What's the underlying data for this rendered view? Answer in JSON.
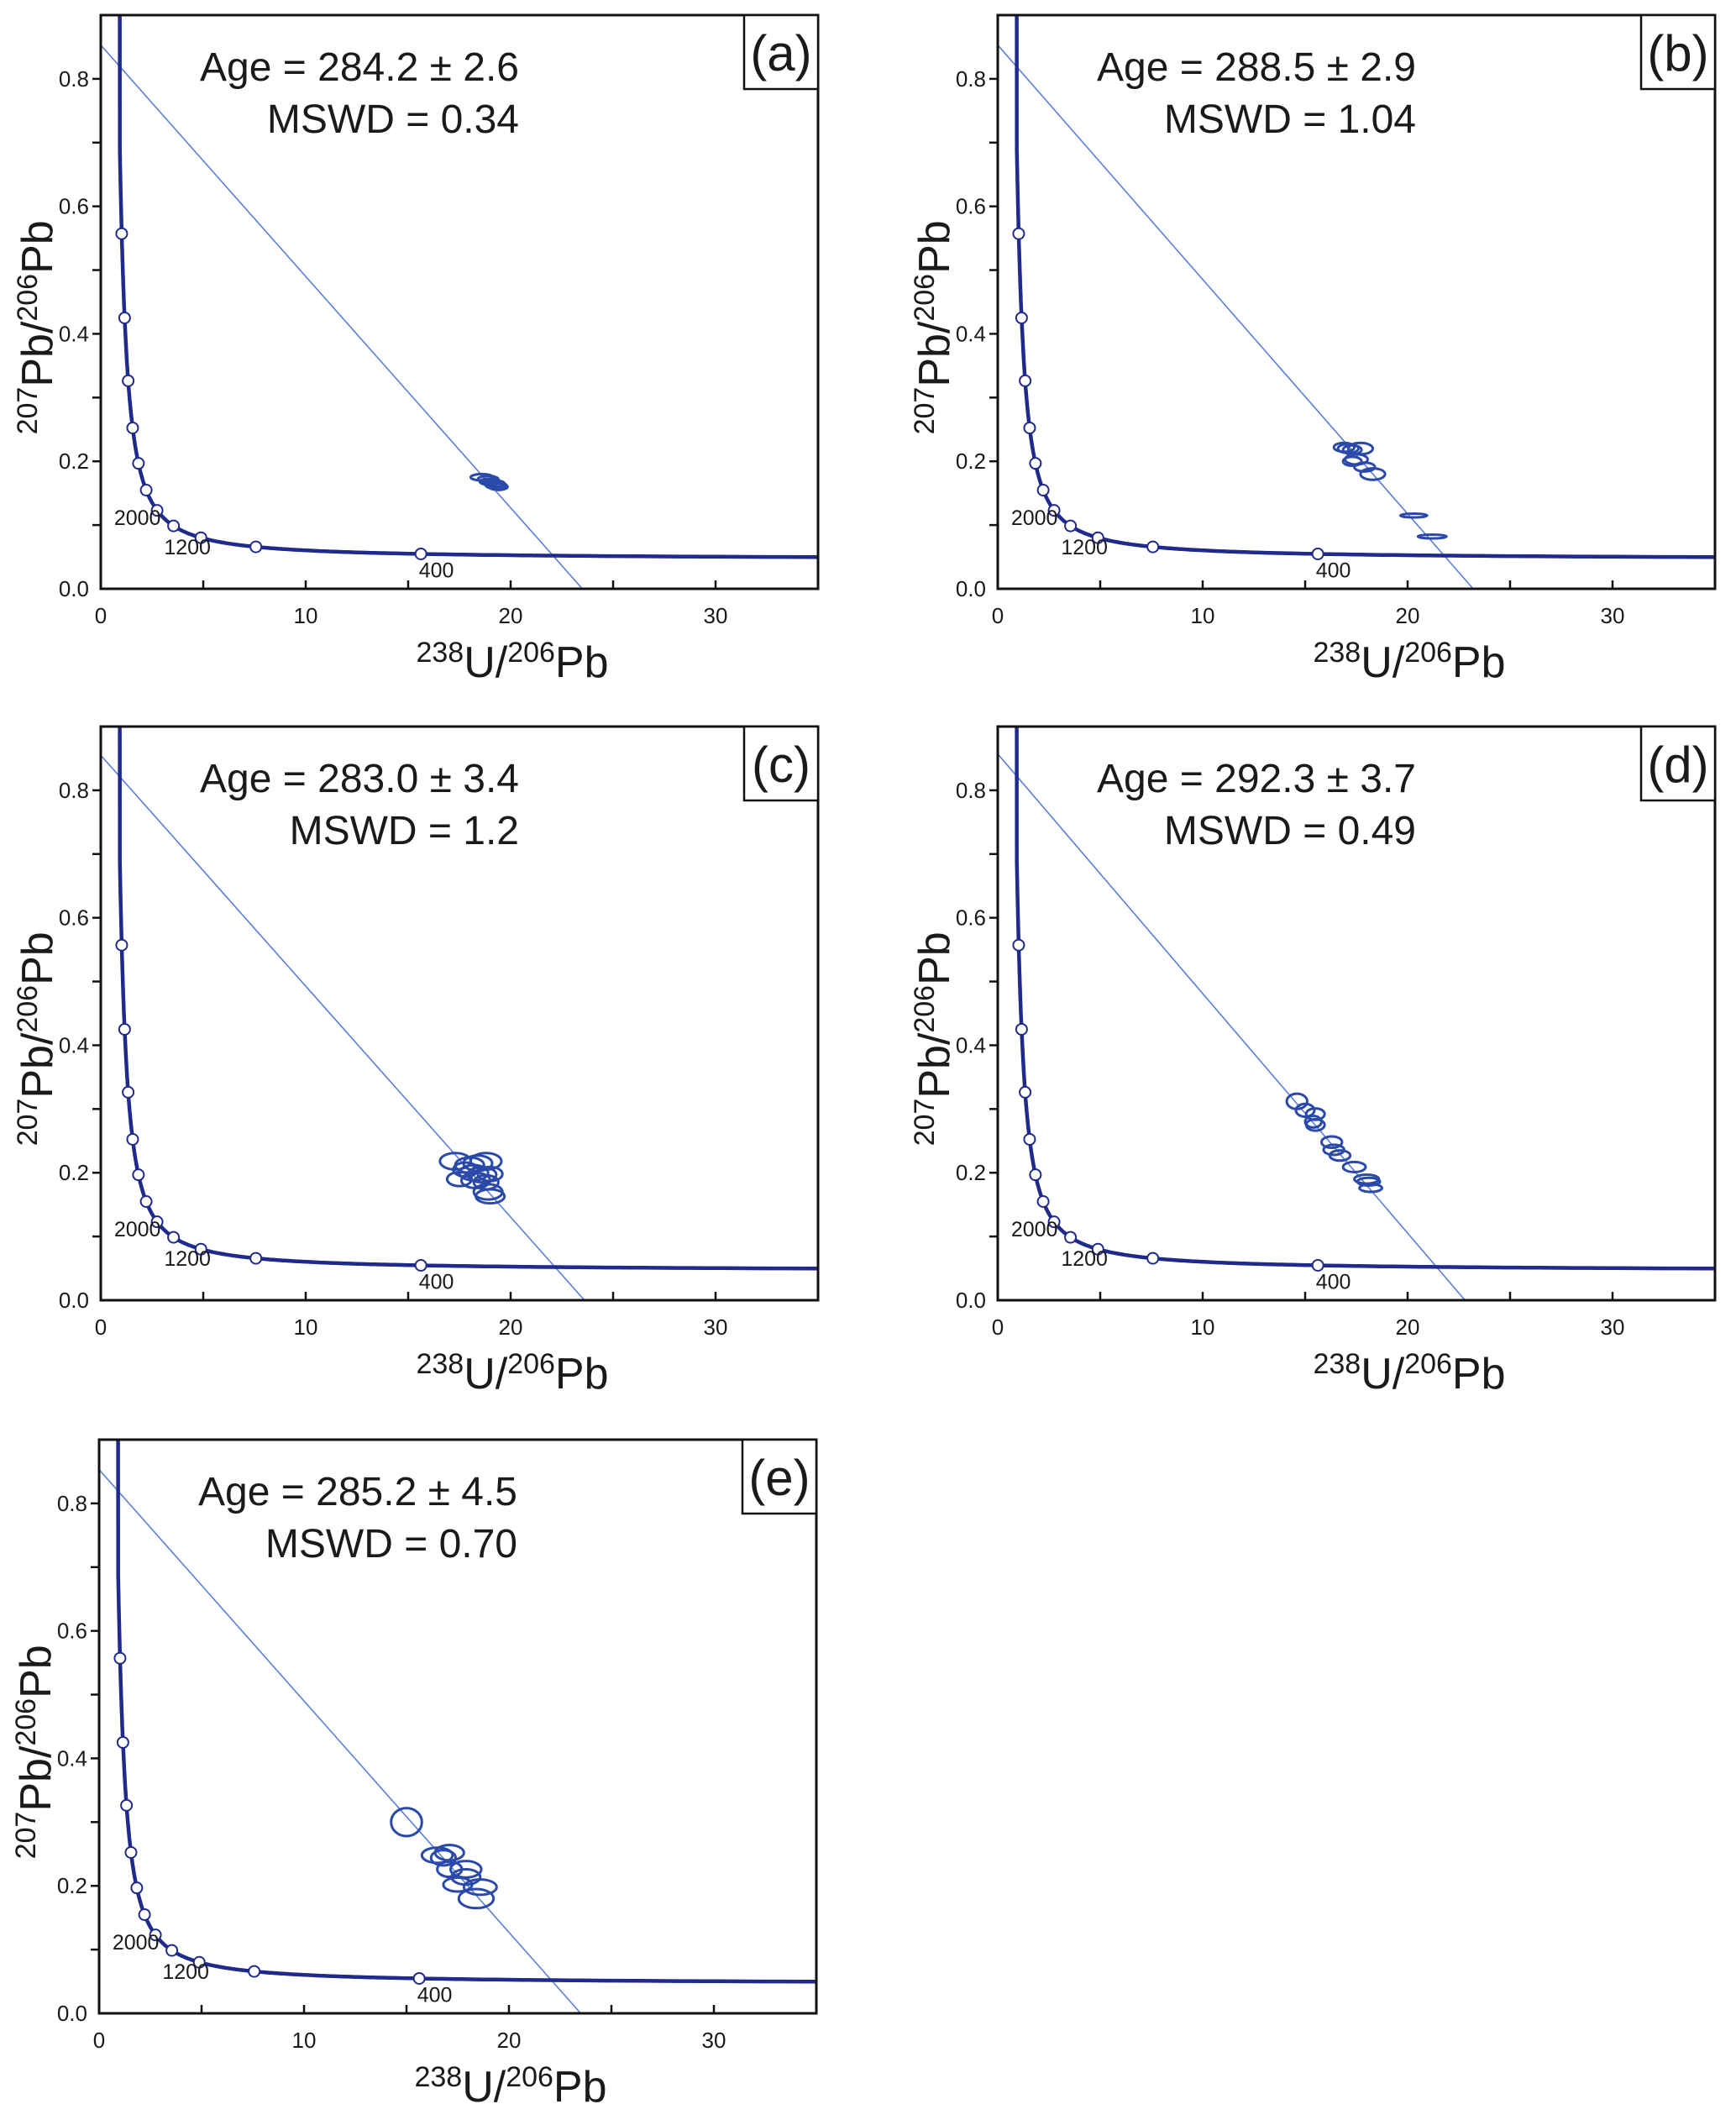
{
  "chart_data": [
    {
      "type": "scatter",
      "panel": "(a)",
      "age_text": "Age = 284.2 ± 2.6",
      "mswd_text": "MSWD = 0.34",
      "xlabel": {
        "sup1": "238",
        "main1": "U/",
        "sup2": "206",
        "main2": "Pb"
      },
      "ylabel": {
        "sup1": "207",
        "main1": "Pb/",
        "sup2": "206",
        "main2": "Pb"
      },
      "xlim": [
        0,
        35
      ],
      "ylim": [
        0,
        0.9
      ],
      "x_ticks": [
        "0",
        "10",
        "20",
        "30"
      ],
      "y_ticks": [
        "0.0",
        "0.2",
        "0.4",
        "0.6",
        "0.8"
      ],
      "concordia_labels": [
        "2000",
        "1200",
        "400"
      ],
      "discordia": {
        "y_intercept": 0.853,
        "x_intercept": 23.5
      },
      "ellipses": [
        {
          "x": 18.6,
          "y": 0.175,
          "rx": 0.55,
          "ry": 0.005
        },
        {
          "x": 18.9,
          "y": 0.172,
          "rx": 0.5,
          "ry": 0.005
        },
        {
          "x": 19.0,
          "y": 0.168,
          "rx": 0.5,
          "ry": 0.005
        },
        {
          "x": 19.2,
          "y": 0.165,
          "rx": 0.5,
          "ry": 0.005
        },
        {
          "x": 19.3,
          "y": 0.162,
          "rx": 0.5,
          "ry": 0.005
        },
        {
          "x": 19.4,
          "y": 0.16,
          "rx": 0.45,
          "ry": 0.005
        }
      ]
    },
    {
      "type": "scatter",
      "panel": "(b)",
      "age_text": "Age = 288.5 ± 2.9",
      "mswd_text": "MSWD = 1.04",
      "xlabel": {
        "sup1": "238",
        "main1": "U/",
        "sup2": "206",
        "main2": "Pb"
      },
      "ylabel": {
        "sup1": "207",
        "main1": "Pb/",
        "sup2": "206",
        "main2": "Pb"
      },
      "xlim": [
        0,
        35
      ],
      "ylim": [
        0,
        0.9
      ],
      "x_ticks": [
        "0",
        "10",
        "20",
        "30"
      ],
      "y_ticks": [
        "0.0",
        "0.2",
        "0.4",
        "0.6",
        "0.8"
      ],
      "concordia_labels": [
        "2000",
        "1200",
        "400"
      ],
      "discordia": {
        "y_intercept": 0.853,
        "x_intercept": 23.2
      },
      "ellipses": [
        {
          "x": 16.9,
          "y": 0.222,
          "rx": 0.5,
          "ry": 0.007
        },
        {
          "x": 17.1,
          "y": 0.22,
          "rx": 0.5,
          "ry": 0.007
        },
        {
          "x": 17.3,
          "y": 0.218,
          "rx": 0.45,
          "ry": 0.007
        },
        {
          "x": 17.7,
          "y": 0.22,
          "rx": 0.6,
          "ry": 0.009
        },
        {
          "x": 17.3,
          "y": 0.2,
          "rx": 0.45,
          "ry": 0.007
        },
        {
          "x": 17.5,
          "y": 0.203,
          "rx": 0.55,
          "ry": 0.008
        },
        {
          "x": 17.9,
          "y": 0.191,
          "rx": 0.5,
          "ry": 0.007
        },
        {
          "x": 18.3,
          "y": 0.18,
          "rx": 0.6,
          "ry": 0.009
        },
        {
          "x": 20.3,
          "y": 0.115,
          "rx": 0.65,
          "ry": 0.003
        },
        {
          "x": 21.2,
          "y": 0.082,
          "rx": 0.7,
          "ry": 0.003
        }
      ]
    },
    {
      "type": "scatter",
      "panel": "(c)",
      "age_text": "Age = 283.0 ± 3.4",
      "mswd_text": "MSWD = 1.2",
      "xlabel": {
        "sup1": "238",
        "main1": "U/",
        "sup2": "206",
        "main2": "Pb"
      },
      "ylabel": {
        "sup1": "207",
        "main1": "Pb/",
        "sup2": "206",
        "main2": "Pb"
      },
      "xlim": [
        0,
        35
      ],
      "ylim": [
        0,
        0.9
      ],
      "x_ticks": [
        "0",
        "10",
        "20",
        "30"
      ],
      "y_ticks": [
        "0.0",
        "0.2",
        "0.4",
        "0.6",
        "0.8"
      ],
      "concordia_labels": [
        "2000",
        "1200",
        "400"
      ],
      "discordia": {
        "y_intercept": 0.855,
        "x_intercept": 23.6
      },
      "ellipses": [
        {
          "x": 17.3,
          "y": 0.218,
          "rx": 0.75,
          "ry": 0.013
        },
        {
          "x": 18.0,
          "y": 0.212,
          "rx": 0.7,
          "ry": 0.012
        },
        {
          "x": 18.4,
          "y": 0.215,
          "rx": 0.7,
          "ry": 0.012
        },
        {
          "x": 18.8,
          "y": 0.218,
          "rx": 0.75,
          "ry": 0.013
        },
        {
          "x": 17.8,
          "y": 0.205,
          "rx": 0.6,
          "ry": 0.011
        },
        {
          "x": 18.2,
          "y": 0.2,
          "rx": 0.7,
          "ry": 0.012
        },
        {
          "x": 18.6,
          "y": 0.197,
          "rx": 0.7,
          "ry": 0.012
        },
        {
          "x": 19.0,
          "y": 0.198,
          "rx": 0.6,
          "ry": 0.011
        },
        {
          "x": 17.5,
          "y": 0.19,
          "rx": 0.6,
          "ry": 0.011
        },
        {
          "x": 18.3,
          "y": 0.188,
          "rx": 0.7,
          "ry": 0.012
        },
        {
          "x": 18.8,
          "y": 0.185,
          "rx": 0.6,
          "ry": 0.011
        },
        {
          "x": 18.9,
          "y": 0.17,
          "rx": 0.7,
          "ry": 0.012
        },
        {
          "x": 19.0,
          "y": 0.163,
          "rx": 0.7,
          "ry": 0.011
        }
      ]
    },
    {
      "type": "scatter",
      "panel": "(d)",
      "age_text": "Age = 292.3 ± 3.7",
      "mswd_text": "MSWD = 0.49",
      "xlabel": {
        "sup1": "238",
        "main1": "U/",
        "sup2": "206",
        "main2": "Pb"
      },
      "ylabel": {
        "sup1": "207",
        "main1": "Pb/",
        "sup2": "206",
        "main2": "Pb"
      },
      "xlim": [
        0,
        35
      ],
      "ylim": [
        0,
        0.9
      ],
      "x_ticks": [
        "0",
        "10",
        "20",
        "30"
      ],
      "y_ticks": [
        "0.0",
        "0.2",
        "0.4",
        "0.6",
        "0.8"
      ],
      "concordia_labels": [
        "2000",
        "1200",
        "400"
      ],
      "discordia": {
        "y_intercept": 0.857,
        "x_intercept": 22.8
      },
      "ellipses": [
        {
          "x": 14.6,
          "y": 0.312,
          "rx": 0.5,
          "ry": 0.012
        },
        {
          "x": 15.0,
          "y": 0.298,
          "rx": 0.45,
          "ry": 0.01
        },
        {
          "x": 15.5,
          "y": 0.292,
          "rx": 0.45,
          "ry": 0.009
        },
        {
          "x": 15.4,
          "y": 0.28,
          "rx": 0.4,
          "ry": 0.009
        },
        {
          "x": 15.5,
          "y": 0.275,
          "rx": 0.45,
          "ry": 0.009
        },
        {
          "x": 16.3,
          "y": 0.248,
          "rx": 0.5,
          "ry": 0.009
        },
        {
          "x": 16.4,
          "y": 0.236,
          "rx": 0.5,
          "ry": 0.008
        },
        {
          "x": 16.7,
          "y": 0.227,
          "rx": 0.5,
          "ry": 0.008
        },
        {
          "x": 17.4,
          "y": 0.209,
          "rx": 0.55,
          "ry": 0.008
        },
        {
          "x": 18.0,
          "y": 0.19,
          "rx": 0.6,
          "ry": 0.007
        },
        {
          "x": 18.1,
          "y": 0.186,
          "rx": 0.55,
          "ry": 0.006
        },
        {
          "x": 18.2,
          "y": 0.176,
          "rx": 0.55,
          "ry": 0.006
        }
      ]
    },
    {
      "type": "scatter",
      "panel": "(e)",
      "age_text": "Age = 285.2 ± 4.5",
      "mswd_text": "MSWD = 0.70",
      "xlabel": {
        "sup1": "238",
        "main1": "U/",
        "sup2": "206",
        "main2": "Pb"
      },
      "ylabel": {
        "sup1": "207",
        "main1": "Pb/",
        "sup2": "206",
        "main2": "Pb"
      },
      "xlim": [
        0,
        35
      ],
      "ylim": [
        0,
        0.9
      ],
      "x_ticks": [
        "0",
        "10",
        "20",
        "30"
      ],
      "y_ticks": [
        "0.0",
        "0.2",
        "0.4",
        "0.6",
        "0.8"
      ],
      "concordia_labels": [
        "2000",
        "1200",
        "400"
      ],
      "discordia": {
        "y_intercept": 0.853,
        "x_intercept": 23.5
      },
      "ellipses": [
        {
          "x": 15.0,
          "y": 0.3,
          "rx": 0.75,
          "ry": 0.022
        },
        {
          "x": 16.5,
          "y": 0.248,
          "rx": 0.75,
          "ry": 0.012
        },
        {
          "x": 16.8,
          "y": 0.244,
          "rx": 0.6,
          "ry": 0.012
        },
        {
          "x": 17.1,
          "y": 0.252,
          "rx": 0.7,
          "ry": 0.012
        },
        {
          "x": 17.1,
          "y": 0.226,
          "rx": 0.6,
          "ry": 0.012
        },
        {
          "x": 17.9,
          "y": 0.226,
          "rx": 0.75,
          "ry": 0.013
        },
        {
          "x": 17.9,
          "y": 0.214,
          "rx": 0.7,
          "ry": 0.012
        },
        {
          "x": 17.5,
          "y": 0.202,
          "rx": 0.7,
          "ry": 0.011
        },
        {
          "x": 18.6,
          "y": 0.198,
          "rx": 0.8,
          "ry": 0.012
        },
        {
          "x": 18.4,
          "y": 0.18,
          "rx": 0.85,
          "ry": 0.015
        }
      ]
    }
  ],
  "concordia": {
    "marker_ages_ma": [
      400,
      800,
      1200,
      1600,
      2000,
      2400,
      2800,
      3200,
      3600,
      4000,
      4400
    ]
  },
  "colors": {
    "concordia": "#1f2a8a",
    "ellipse": "#2a49a8",
    "discordia": "#5a7fd6",
    "axis": "#111111"
  }
}
